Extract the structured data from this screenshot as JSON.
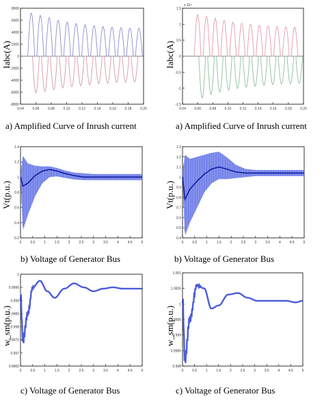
{
  "chart_data": [
    {
      "id": "inrush-left",
      "type": "line",
      "caption": "a) Amplified Curve of Inrush current",
      "ylabel": "Iabc(A)",
      "xlim": [
        0.04,
        0.2
      ],
      "ylim": [
        -8000,
        8000
      ],
      "xticks": [
        "0.04",
        "0.06",
        "0.08",
        "0.10",
        "0.12",
        "0.14",
        "0.16",
        "0.18",
        "0.20"
      ],
      "yticks": [
        "-8000",
        "-6000",
        "-4000",
        "-2000",
        "0",
        "2000",
        "4000",
        "6000",
        "8000"
      ],
      "series": [
        {
          "color": "#8c8cd0",
          "x": [
            0.054,
            0.0657,
            0.0773,
            0.089,
            0.1007,
            0.1123,
            0.124,
            0.1357,
            0.1473,
            0.159,
            0.1707,
            0.1823,
            0.194
          ],
          "peaks": [
            7200,
            6800,
            6400,
            6000,
            5700,
            5450,
            5250,
            5100,
            4950,
            4850,
            4750,
            4700,
            4650
          ]
        },
        {
          "color": "#d49aa5",
          "x": [
            0.06,
            0.0717,
            0.0833,
            0.095,
            0.1067,
            0.1183,
            0.13,
            0.1417,
            0.1533,
            0.165,
            0.1767,
            0.1883
          ],
          "troughs": [
            -6100,
            -5900,
            -5600,
            -5300,
            -5100,
            -4900,
            -4750,
            -4600,
            -4500,
            -4400,
            -4350,
            -4300
          ]
        }
      ]
    },
    {
      "id": "inrush-right",
      "type": "line",
      "caption": "a) Amplified Curve of Inrush current",
      "ylabel": "Iabc(A)",
      "exponent_label": "x 10⁴",
      "xlim": [
        0.04,
        0.2
      ],
      "ylim": [
        -1.5,
        1.5
      ],
      "xticks": [
        "0.04",
        "0.06",
        "0.08",
        "0.10",
        "0.12",
        "0.14",
        "0.16",
        "0.18",
        "0.20"
      ],
      "yticks": [
        "-1.5",
        "-1",
        "-0.5",
        "0",
        "0.5",
        "1",
        "1.5"
      ],
      "series": [
        {
          "color": "#e39aa9",
          "x": [
            0.06,
            0.0717,
            0.0833,
            0.095,
            0.1067,
            0.1183,
            0.13,
            0.1417,
            0.1533,
            0.165,
            0.1767,
            0.1883
          ],
          "peaks": [
            1.3,
            1.25,
            1.18,
            1.12,
            1.07,
            1.03,
            1.0,
            0.97,
            0.95,
            0.93,
            0.92,
            0.91
          ]
        },
        {
          "color": "#8fbf9a",
          "x": [
            0.066,
            0.0777,
            0.0893,
            0.101,
            0.1127,
            0.1243,
            0.136,
            0.1477,
            0.1593,
            0.171,
            0.1827,
            0.1943
          ],
          "troughs": [
            -1.3,
            -1.2,
            -1.12,
            -1.06,
            -1.01,
            -0.97,
            -0.94,
            -0.91,
            -0.89,
            -0.87,
            -0.86,
            -0.85
          ]
        }
      ]
    },
    {
      "id": "voltage-left",
      "type": "area",
      "caption": "b) Voltage of Generator Bus",
      "ylabel": "Vt(p.u.)",
      "xlim": [
        0,
        5
      ],
      "ylim": [
        0.2,
        1.4
      ],
      "xticks": [
        "0",
        "0.5",
        "1",
        "1.5",
        "2",
        "2.5",
        "3",
        "3.5",
        "4",
        "4.5",
        "5"
      ],
      "yticks": [
        "0.2",
        "0.4",
        "0.6",
        "0.8",
        "1",
        "1.2",
        "1.4"
      ],
      "center": {
        "x": [
          0,
          0.1,
          0.3,
          0.6,
          0.9,
          1.2,
          1.5,
          1.8,
          2.2,
          2.6,
          3.0,
          3.5,
          4.0,
          4.5,
          5.0
        ],
        "y": [
          1.0,
          0.88,
          0.92,
          1.02,
          1.08,
          1.1,
          1.08,
          1.05,
          1.02,
          1.0,
          1.0,
          1.0,
          1.0,
          1.0,
          1.0
        ]
      },
      "upper": {
        "x": [
          0,
          0.1,
          0.3,
          0.6,
          0.9,
          1.2,
          1.5,
          1.8,
          2.2,
          2.6,
          3.0,
          3.5,
          4.0,
          4.5,
          5.0
        ],
        "y": [
          1.05,
          1.28,
          1.18,
          1.15,
          1.14,
          1.14,
          1.12,
          1.09,
          1.06,
          1.05,
          1.04,
          1.04,
          1.04,
          1.04,
          1.04
        ]
      },
      "lower": {
        "x": [
          0,
          0.1,
          0.3,
          0.6,
          0.9,
          1.2,
          1.5,
          1.8,
          2.2,
          2.6,
          3.0,
          3.5,
          4.0,
          4.5,
          5.0
        ],
        "y": [
          0.95,
          0.3,
          0.5,
          0.75,
          0.92,
          1.0,
          1.01,
          0.99,
          0.97,
          0.96,
          0.96,
          0.96,
          0.96,
          0.96,
          0.96
        ]
      },
      "color": "#2b3fd4"
    },
    {
      "id": "voltage-right",
      "type": "area",
      "caption": "b) Voltage of Generator Bus",
      "ylabel": "Vt(p.u.)",
      "xlim": [
        0,
        5
      ],
      "ylim": [
        0.4,
        1.3
      ],
      "xticks": [
        "0",
        "0.5",
        "1",
        "1.5",
        "2",
        "2.5",
        "3",
        "3.5",
        "4",
        "4.5",
        "5"
      ],
      "yticks": [
        "0.4",
        "0.5",
        "0.6",
        "0.7",
        "0.8",
        "0.9",
        "1",
        "1.1",
        "1.2",
        "1.3"
      ],
      "center": {
        "x": [
          0,
          0.1,
          0.3,
          0.6,
          0.9,
          1.2,
          1.5,
          1.8,
          2.2,
          2.6,
          3.0,
          3.5,
          4.0,
          4.5,
          5.0
        ],
        "y": [
          1.0,
          0.78,
          0.88,
          0.96,
          1.03,
          1.08,
          1.1,
          1.08,
          1.05,
          1.04,
          1.04,
          1.04,
          1.04,
          1.04,
          1.04
        ]
      },
      "upper": {
        "x": [
          0,
          0.1,
          0.3,
          0.6,
          0.9,
          1.2,
          1.5,
          1.8,
          2.2,
          2.6,
          3.0,
          3.5,
          4.0,
          4.5,
          5.0
        ],
        "y": [
          1.05,
          1.22,
          1.18,
          1.2,
          1.22,
          1.24,
          1.25,
          1.2,
          1.12,
          1.08,
          1.07,
          1.07,
          1.07,
          1.07,
          1.07
        ]
      },
      "lower": {
        "x": [
          0,
          0.1,
          0.3,
          0.6,
          0.9,
          1.2,
          1.5,
          1.8,
          2.2,
          2.6,
          3.0,
          3.5,
          4.0,
          4.5,
          5.0
        ],
        "y": [
          0.95,
          0.42,
          0.55,
          0.7,
          0.85,
          0.94,
          0.98,
          0.98,
          0.99,
          1.0,
          1.01,
          1.01,
          1.01,
          1.01,
          1.01
        ]
      },
      "color": "#2b3fd4"
    },
    {
      "id": "speed-left",
      "type": "line",
      "caption": "c) Voltage of Generator Bus",
      "ylabel": "w_sm(p.u.)",
      "xlim": [
        0,
        5
      ],
      "ylim": [
        0.9965,
        1.0
      ],
      "xticks": [
        "0",
        "0.5",
        "1",
        "1.5",
        "2",
        "2.5",
        "3",
        "3.5",
        "4",
        "4.5",
        "5"
      ],
      "yticks": [
        "0.9965",
        "0.997",
        "0.9975",
        "0.998",
        "0.9985",
        "0.999",
        "0.9995",
        "1"
      ],
      "center": {
        "x": [
          0,
          0.1,
          0.3,
          0.5,
          0.8,
          1.1,
          1.4,
          1.8,
          2.2,
          2.6,
          3.0,
          3.4,
          3.8,
          4.2,
          4.6,
          5.0
        ],
        "y": [
          0.9992,
          0.9975,
          0.9985,
          0.9995,
          0.99975,
          0.99935,
          0.9991,
          0.99945,
          0.99965,
          0.9995,
          0.99935,
          0.99945,
          0.9995,
          0.99945,
          0.99945,
          0.99945
        ]
      },
      "noise_until": 0.6,
      "color": "#2b3fd4"
    },
    {
      "id": "speed-right",
      "type": "line",
      "caption": "c) Voltage of Generator Bus",
      "ylabel": "w_sm(p.u.)",
      "xlim": [
        0,
        5
      ],
      "ylim": [
        0.998,
        1.001
      ],
      "xticks": [
        "0",
        "0.5",
        "1",
        "1.5",
        "2",
        "2.5",
        "3",
        "3.5",
        "4",
        "4.5",
        "5"
      ],
      "yticks": [
        "0.998",
        "0.9985",
        "0.999",
        "0.9995",
        "1",
        "1.0005",
        "1.001"
      ],
      "center": {
        "x": [
          0,
          0.1,
          0.3,
          0.6,
          0.9,
          1.2,
          1.5,
          1.9,
          2.3,
          2.7,
          3.1,
          3.5,
          3.9,
          4.3,
          4.7,
          5.0
        ],
        "y": [
          1.0002,
          0.9982,
          0.9995,
          1.0006,
          1.0005,
          0.99985,
          0.99995,
          1.0003,
          1.00035,
          1.0002,
          1.0001,
          1.0001,
          1.0001,
          1.0001,
          1.00005,
          1.0001
        ]
      },
      "noise_until": 0.8,
      "color": "#2b3fd4"
    }
  ]
}
